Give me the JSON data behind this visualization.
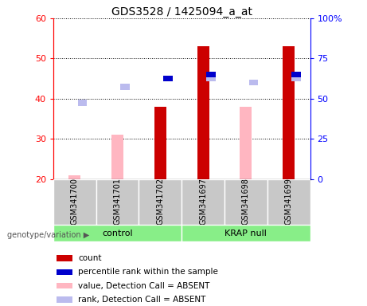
{
  "title": "GDS3528 / 1425094_a_at",
  "samples": [
    "GSM341700",
    "GSM341701",
    "GSM341702",
    "GSM341697",
    "GSM341698",
    "GSM341699"
  ],
  "ylim_left": [
    20,
    60
  ],
  "ylim_right": [
    0,
    100
  ],
  "yticks_left": [
    20,
    30,
    40,
    50,
    60
  ],
  "yticks_right": [
    0,
    25,
    50,
    75,
    100
  ],
  "yticklabels_right": [
    "0",
    "25",
    "50",
    "75",
    "100%"
  ],
  "pink_bar_heights": [
    21,
    31,
    null,
    null,
    38,
    null
  ],
  "dark_red_bar_heights": [
    null,
    null,
    38,
    53,
    null,
    53
  ],
  "light_blue_y": [
    39,
    43,
    null,
    45,
    44,
    45
  ],
  "dark_blue_y": [
    null,
    null,
    45,
    46,
    null,
    46
  ],
  "group_label": "genotype/variation",
  "group1_label": "control",
  "group2_label": "KRAP null",
  "legend_labels": [
    "count",
    "percentile rank within the sample",
    "value, Detection Call = ABSENT",
    "rank, Detection Call = ABSENT"
  ],
  "legend_colors": [
    "#CC0000",
    "#0000CC",
    "#FFB6C1",
    "#BBBBEE"
  ],
  "pink_color": "#FFB6C1",
  "dark_red_color": "#CC0000",
  "light_blue_color": "#BBBBEE",
  "dark_blue_color": "#0000CC",
  "gray_color": "#C8C8C8",
  "green_color": "#88EE88"
}
